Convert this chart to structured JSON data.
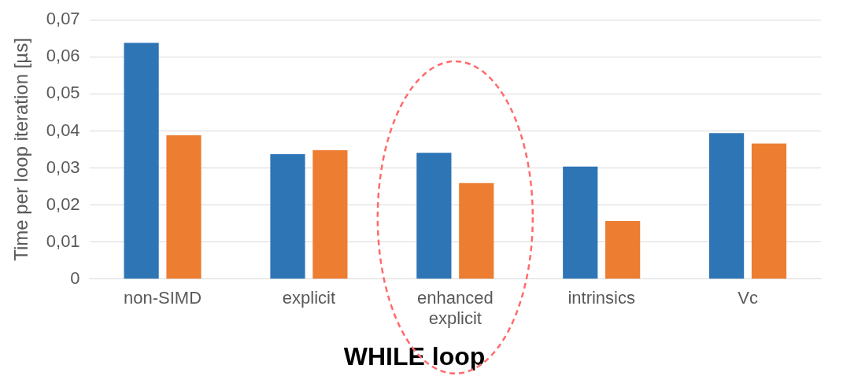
{
  "chart_data": {
    "type": "bar",
    "title": "WHILE loop",
    "ylabel": "Time per loop iteration [µs]",
    "categories": [
      "non-SIMD",
      "explicit",
      "enhanced explicit",
      "intrinsics",
      "Vc"
    ],
    "series": [
      {
        "color": "#2e75b6",
        "values": [
          0.0638,
          0.0337,
          0.0341,
          0.0304,
          0.0394
        ]
      },
      {
        "color": "#ed7d31",
        "values": [
          0.0388,
          0.0348,
          0.0259,
          0.0157,
          0.0366
        ]
      }
    ],
    "ylim": [
      0,
      0.07
    ],
    "yticks": [
      {
        "value": 0,
        "label": "0"
      },
      {
        "value": 0.01,
        "label": "0,01"
      },
      {
        "value": 0.02,
        "label": "0,02"
      },
      {
        "value": 0.03,
        "label": "0,03"
      },
      {
        "value": 0.04,
        "label": "0,04"
      },
      {
        "value": 0.05,
        "label": "0,05"
      },
      {
        "value": 0.06,
        "label": "0,06"
      },
      {
        "value": 0.07,
        "label": "0,07"
      }
    ],
    "grid": "y",
    "legend": false
  }
}
